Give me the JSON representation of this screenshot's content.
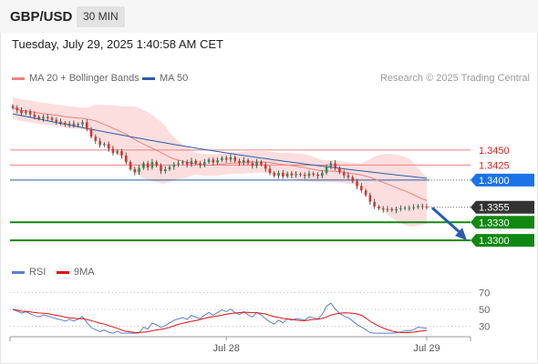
{
  "header": {
    "symbol": "GBP/USD",
    "timeframe": "30 MIN"
  },
  "datetime": "Tuesday, July 29, 2025 1:40:58 AM CET",
  "legend": {
    "ma20_label": "MA 20 + Bollinger Bands",
    "ma20_color": "#f08080",
    "ma50_label": "MA 50",
    "ma50_color": "#2a5caa"
  },
  "credit": "Research © 2025 Trading Central",
  "rsi_legend": {
    "rsi_label": "RSI",
    "rsi_color": "#5b7fd4",
    "ma_label": "9MA",
    "ma_color": "#dd1111"
  },
  "chart_data": {
    "type": "candlestick",
    "price_axis": {
      "min": 1.327,
      "max": 1.356
    },
    "price_levels": [
      {
        "label": "1.3450",
        "value": 1.345,
        "kind": "resistance",
        "color": "#f08080"
      },
      {
        "label": "1.3425",
        "value": 1.3425,
        "kind": "resistance",
        "color": "#f08080"
      },
      {
        "label": "1.3400",
        "value": 1.34,
        "kind": "pivot",
        "color": "#1a73e8"
      },
      {
        "label": "1.3355",
        "value": 1.3355,
        "kind": "last",
        "color": "#333333"
      },
      {
        "label": "1.3330",
        "value": 1.333,
        "kind": "support",
        "color": "#118811"
      },
      {
        "label": "1.3300",
        "value": 1.33,
        "kind": "support",
        "color": "#118811"
      }
    ],
    "x_labels": [
      {
        "label": "Jul 28",
        "index": 49
      },
      {
        "label": "Jul 29",
        "index": 95
      }
    ],
    "closes": [
      1.352,
      1.3516,
      1.3511,
      1.3514,
      1.3509,
      1.3505,
      1.3502,
      1.3505,
      1.3503,
      1.35,
      1.3497,
      1.3495,
      1.3492,
      1.3494,
      1.3491,
      1.3493,
      1.3496,
      1.3485,
      1.3472,
      1.3465,
      1.3458,
      1.346,
      1.3452,
      1.3445,
      1.3448,
      1.3441,
      1.343,
      1.3418,
      1.3413,
      1.342,
      1.3428,
      1.3421,
      1.343,
      1.3424,
      1.3415,
      1.3418,
      1.3422,
      1.3426,
      1.3428,
      1.343,
      1.3426,
      1.3432,
      1.3428,
      1.3425,
      1.343,
      1.3434,
      1.3429,
      1.3433,
      1.3437,
      1.3434,
      1.3438,
      1.3432,
      1.3429,
      1.3433,
      1.3428,
      1.3424,
      1.343,
      1.3426,
      1.3419,
      1.3412,
      1.3407,
      1.3412,
      1.3406,
      1.3411,
      1.3408,
      1.341,
      1.3409,
      1.3407,
      1.3411,
      1.3409,
      1.3407,
      1.3412,
      1.3423,
      1.3428,
      1.342,
      1.3413,
      1.3408,
      1.3405,
      1.3398,
      1.339,
      1.3383,
      1.3375,
      1.3364,
      1.3356,
      1.3353,
      1.3351,
      1.3352,
      1.335,
      1.3352,
      1.3353,
      1.3354,
      1.3354,
      1.3355,
      1.3357,
      1.3356,
      1.3355
    ],
    "ma50_start": 1.351,
    "ma50_end": 1.3403,
    "rsi_axis": {
      "min": 20,
      "max": 80,
      "levels": [
        {
          "label": "70",
          "value": 70
        },
        {
          "label": "50",
          "value": 50
        },
        {
          "label": "30",
          "value": 30
        }
      ]
    },
    "forecast_arrow": {
      "from": 1.3354,
      "to": 1.3306
    }
  }
}
